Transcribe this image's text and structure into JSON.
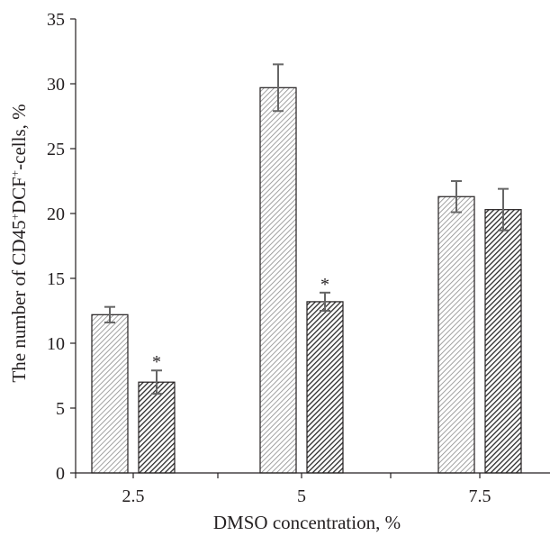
{
  "chart_data": {
    "type": "bar",
    "title": "",
    "xlabel": "DMSO concentration, %",
    "ylabel": {
      "pre": "The number of CD45",
      "sup1": "+",
      "mid": "DCF",
      "sup2": "+",
      "post": "-cells, %"
    },
    "categories": [
      "2.5",
      "5",
      "7.5"
    ],
    "series": [
      {
        "values": [
          12.2,
          29.7,
          21.3
        ],
        "errors": [
          0.6,
          1.8,
          1.2
        ],
        "pattern": "light-hatch"
      },
      {
        "values": [
          7.0,
          13.2,
          20.3
        ],
        "errors": [
          0.9,
          0.7,
          1.6
        ],
        "pattern": "dark-hatch"
      }
    ],
    "significance": [
      {
        "category": "2.5",
        "series": 1,
        "label": "*"
      },
      {
        "category": "5",
        "series": 1,
        "label": "*"
      }
    ],
    "ylim": [
      0,
      35
    ],
    "yticks": [
      0,
      5,
      10,
      15,
      20,
      25,
      30,
      35
    ],
    "grid": false,
    "legend": "none"
  },
  "colors": {
    "axis": "#231f20",
    "bar_edge": "#231f20",
    "error_bar": "#666666",
    "light_hatch": "#8a8a8a",
    "dark_hatch": "#2a2a2a"
  }
}
